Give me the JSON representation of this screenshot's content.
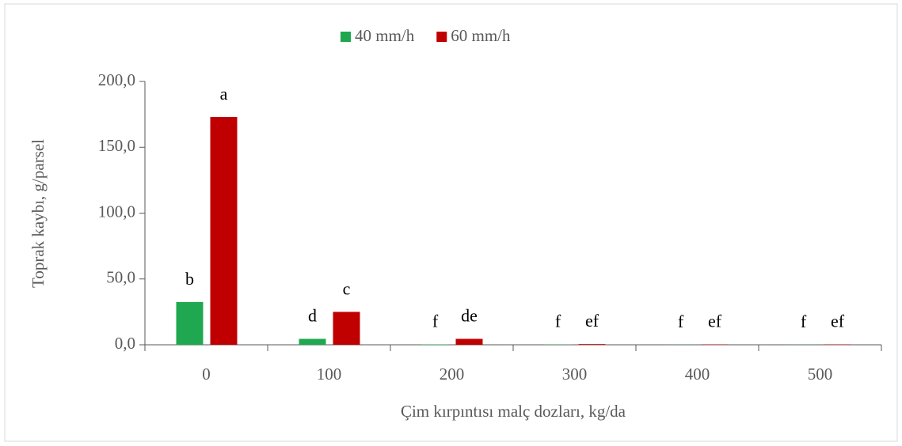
{
  "chart_data": {
    "type": "bar",
    "categories": [
      "0",
      "100",
      "200",
      "300",
      "400",
      "500"
    ],
    "series": [
      {
        "name": "40 mm/h",
        "color": "#1fa84f",
        "values": [
          32.5,
          4.5,
          0.3,
          0.2,
          0.1,
          0.1
        ],
        "letters": [
          "b",
          "d",
          "f",
          "f",
          "f",
          "f"
        ]
      },
      {
        "name": "60 mm/h",
        "color": "#c00000",
        "values": [
          173,
          25,
          4.5,
          0.5,
          0.3,
          0.3
        ],
        "letters": [
          "a",
          "c",
          "de",
          "ef",
          "ef",
          "ef"
        ]
      }
    ],
    "xlabel": "Çim kırpıntısı malç dozları, kg/da",
    "ylabel": "Toprak kaybı, g/parsel",
    "ylim": [
      0,
      200
    ],
    "yticks": [
      {
        "value": 0,
        "label": "0,0"
      },
      {
        "value": 50,
        "label": "50,0"
      },
      {
        "value": 100,
        "label": "100,0"
      },
      {
        "value": 150,
        "label": "150,0"
      },
      {
        "value": 200,
        "label": "200,0"
      }
    ],
    "legend": "top"
  }
}
